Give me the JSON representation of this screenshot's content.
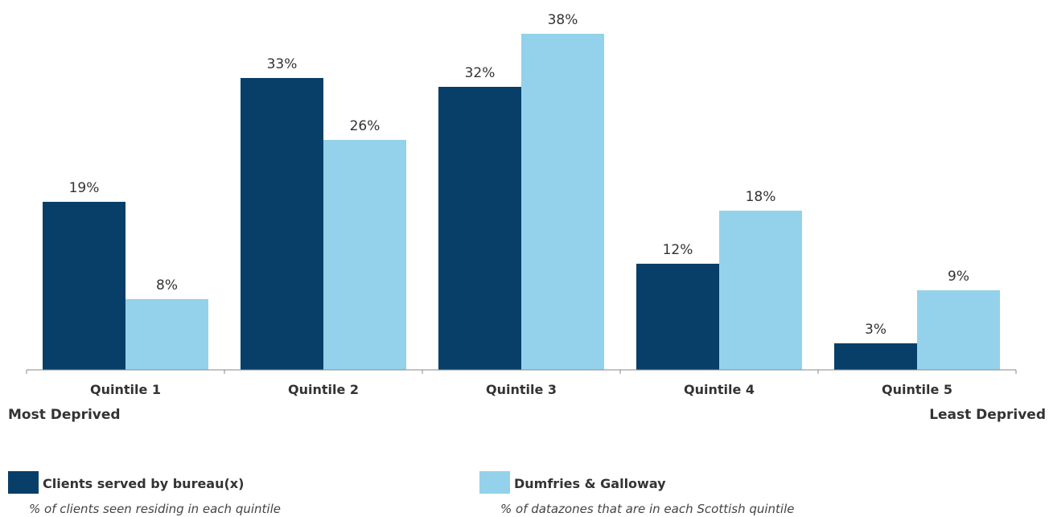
{
  "chart_data": {
    "type": "bar",
    "title": "",
    "xlabel": "",
    "ylabel": "",
    "categories": [
      "Quintile 1",
      "Quintile 2",
      "Quintile 3",
      "Quintile 4",
      "Quintile 5"
    ],
    "ylim": [
      0,
      40
    ],
    "grid": false,
    "series": [
      {
        "name": "Clients served by bureau(x)",
        "values": [
          19,
          33,
          32,
          12,
          3
        ],
        "labels": [
          "19%",
          "33%",
          "32%",
          "12%",
          "3%"
        ],
        "color": "#083f68"
      },
      {
        "name": "Dumfries & Galloway",
        "values": [
          8,
          26,
          38,
          18,
          9
        ],
        "labels": [
          "8%",
          "26%",
          "38%",
          "18%",
          "9%"
        ],
        "color": "#93d2ea"
      }
    ],
    "axis_end_labels": {
      "left": "Most Deprived",
      "right": "Least Deprived"
    },
    "legend": {
      "placement": "bottom",
      "items": [
        {
          "name": "Clients served by bureau(x)",
          "description": "% of clients seen residing in each quintile"
        },
        {
          "name": "Dumfries & Galloway",
          "description": "% of datazones that are in each Scottish quintile"
        }
      ]
    }
  }
}
